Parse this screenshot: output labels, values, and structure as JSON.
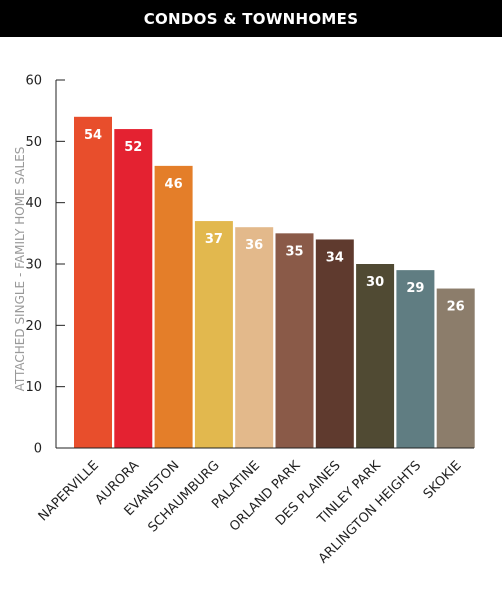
{
  "chart_data": {
    "type": "bar",
    "title": "CONDOS & TOWNHOMES",
    "xlabel": "",
    "ylabel": "ATTACHED SINGLE - FAMILY HOME SALES",
    "ylim": [
      0,
      60
    ],
    "yticks": [
      0,
      10,
      20,
      30,
      40,
      50,
      60
    ],
    "grid": false,
    "data_labels": true,
    "categories": [
      "NAPERVILLE",
      "AURORA",
      "EVANSTON",
      "SCHAUMBURG",
      "PALATINE",
      "ORLAND PARK",
      "DES PLAINES",
      "TINLEY PARK",
      "ARLINGTON HEIGHTS",
      "SKOKIE"
    ],
    "values": [
      54,
      52,
      46,
      37,
      36,
      35,
      34,
      30,
      29,
      26
    ],
    "colors": [
      "#e84e2c",
      "#e42231",
      "#e47e29",
      "#e2b84e",
      "#e3b98b",
      "#8a5a48",
      "#5f3a2e",
      "#504a33",
      "#607d82",
      "#8c7d6b"
    ]
  }
}
